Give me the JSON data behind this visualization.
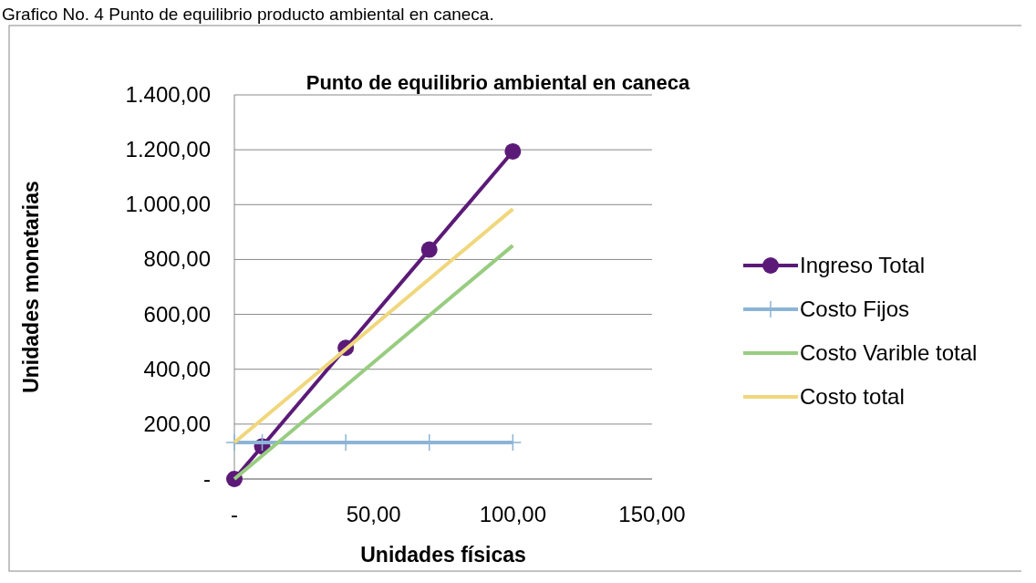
{
  "chart_data": {
    "type": "line",
    "title": "Punto de equilibrio ambiental en caneca",
    "xlabel": "Unidades físicas",
    "ylabel": "Unidades monetarias",
    "annotations": [
      "Grafico No. 4 Punto de equilibrio producto ambiental en caneca."
    ],
    "x": [
      0,
      10,
      40,
      70,
      100
    ],
    "series": [
      {
        "name": "Ingreso Total",
        "color": "#5c1a78",
        "marker": "circle",
        "values": [
          0,
          119,
          478,
          836,
          1194
        ]
      },
      {
        "name": "Costo Fijos",
        "color": "#8cb4d6",
        "marker": "cross",
        "values": [
          133,
          133,
          133,
          133,
          133
        ]
      },
      {
        "name": "Costo Varible total",
        "color": "#98cc80",
        "marker": "none",
        "values": [
          0,
          85,
          340,
          596,
          851
        ]
      },
      {
        "name": "Costo total",
        "color": "#f0d77c",
        "marker": "none",
        "values": [
          133,
          218,
          473,
          729,
          984
        ]
      }
    ],
    "xlim": [
      0,
      150
    ],
    "xticks": [
      {
        "value": 0,
        "label": "-"
      },
      {
        "value": 50,
        "label": "50,00"
      },
      {
        "value": 100,
        "label": "100,00"
      },
      {
        "value": 150,
        "label": "150,00"
      }
    ],
    "ylim": [
      0,
      1400
    ],
    "yticks": [
      {
        "value": 0,
        "label": "-"
      },
      {
        "value": 200,
        "label": "200,00"
      },
      {
        "value": 400,
        "label": "400,00"
      },
      {
        "value": 600,
        "label": "600,00"
      },
      {
        "value": 800,
        "label": "800,00"
      },
      {
        "value": 1000,
        "label": "1.000,00"
      },
      {
        "value": 1200,
        "label": "1.200,00"
      },
      {
        "value": 1400,
        "label": "1.400,00"
      }
    ],
    "grid": "y",
    "legend": "right"
  }
}
